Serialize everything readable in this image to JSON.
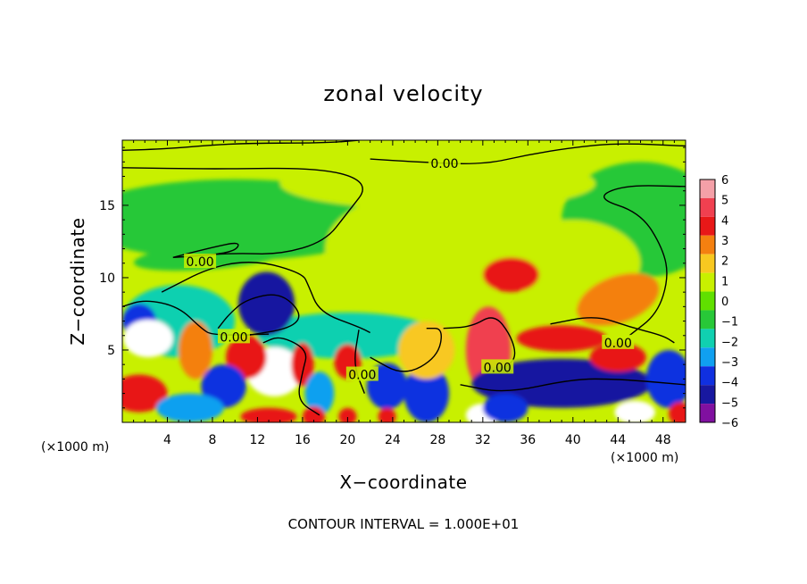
{
  "chart_data": {
    "type": "heatmap",
    "title": "zonal velocity",
    "xlabel": "X−coordinate",
    "ylabel": "Z−coordinate",
    "x_unit_left": "(×1000 m)",
    "x_unit_right": "(×1000 m)",
    "footer": "CONTOUR INTERVAL = 1.000E+01",
    "xlim": [
      0,
      50
    ],
    "ylim": [
      0,
      19.5
    ],
    "x_ticks": [
      4,
      8,
      12,
      16,
      20,
      24,
      28,
      32,
      36,
      40,
      44,
      48
    ],
    "y_ticks": [
      5,
      10,
      15
    ],
    "x_tick_labels": [
      "4",
      "8",
      "12",
      "16",
      "20",
      "24",
      "28",
      "32",
      "36",
      "40",
      "44",
      "48"
    ],
    "y_tick_labels": [
      "5",
      "10",
      "15"
    ],
    "colorbar": {
      "levels": [
        6,
        5,
        4,
        3,
        2,
        1,
        0,
        -1,
        -2,
        -3,
        -4,
        -5,
        -6
      ],
      "labels": [
        "6",
        "5",
        "4",
        "3",
        "2",
        "1",
        "0",
        "−1",
        "−2",
        "−3",
        "−4",
        "−5",
        "−6"
      ],
      "colors": [
        "#f4a0a8",
        "#f04050",
        "#e81818",
        "#f48010",
        "#f8c820",
        "#c8f000",
        "#60e000",
        "#28c838",
        "#10d0b0",
        "#10a0f0",
        "#1030e0",
        "#1818a0",
        "#8010a0"
      ]
    },
    "contour_labels": [
      {
        "text": "0.00",
        "x": 28.6,
        "y": 17.9
      },
      {
        "text": "0.00",
        "x": 6.9,
        "y": 11.1
      },
      {
        "text": "0.00",
        "x": 9.9,
        "y": 5.9
      },
      {
        "text": "0.00",
        "x": 21.3,
        "y": 3.3
      },
      {
        "text": "0.00",
        "x": 33.3,
        "y": 3.8
      },
      {
        "text": "0.00",
        "x": 44.0,
        "y": 5.5
      }
    ],
    "features": [
      {
        "type": "background",
        "value": 0.6
      },
      {
        "value": -0.8,
        "cx": 10,
        "cy": 14,
        "rx": 14,
        "ry": 2.8,
        "rot": 0
      },
      {
        "value": -0.7,
        "cx": 46,
        "cy": 14,
        "rx": 7,
        "ry": 4,
        "rot": 0
      },
      {
        "value": 0.7,
        "cx": 28,
        "cy": 16.5,
        "rx": 14,
        "ry": 1.8,
        "rot": 0
      },
      {
        "value": -0.9,
        "cx": 8,
        "cy": 11.5,
        "rx": 7,
        "ry": 0.9,
        "rot": -5
      },
      {
        "value": 1.3,
        "cx": 27,
        "cy": 12,
        "rx": 9,
        "ry": 4,
        "rot": 0
      },
      {
        "value": 0.9,
        "cx": 40,
        "cy": 11,
        "rx": 6,
        "ry": 3,
        "rot": 0
      },
      {
        "value": -1.6,
        "cx": 5,
        "cy": 7,
        "rx": 5,
        "ry": 2.5,
        "rot": 0
      },
      {
        "value": -2.2,
        "cx": 20,
        "cy": 6,
        "rx": 8,
        "ry": 1.6,
        "rot": 0
      },
      {
        "value": -5.5,
        "cx": 12.8,
        "cy": 8.2,
        "rx": 2.5,
        "ry": 2.2,
        "rot": 0
      },
      {
        "value": 3.5,
        "cx": 34.5,
        "cy": 10.2,
        "rx": 2.5,
        "ry": 1.2,
        "rot": 0
      },
      {
        "value": 3.4,
        "cx": 44,
        "cy": 8.5,
        "rx": 3.8,
        "ry": 1.6,
        "rot": -20
      },
      {
        "value": -4.0,
        "cx": 1.5,
        "cy": 7,
        "rx": 1.5,
        "ry": 1.2,
        "rot": 0
      },
      {
        "value": 8.0,
        "cx": 2.3,
        "cy": 5.8,
        "rx": 2.2,
        "ry": 1.3,
        "rot": 0
      },
      {
        "value": 3.0,
        "cx": 6.5,
        "cy": 5,
        "rx": 1.5,
        "ry": 2,
        "rot": 0
      },
      {
        "value": 8.0,
        "cx": 13.5,
        "cy": 3.5,
        "rx": 2.5,
        "ry": 1.7,
        "rot": 0
      },
      {
        "value": 3.5,
        "cx": 11,
        "cy": 4.5,
        "rx": 1.8,
        "ry": 1.5,
        "rot": 0
      },
      {
        "value": 3.5,
        "cx": 16,
        "cy": 4,
        "rx": 1,
        "ry": 1.5,
        "rot": 0
      },
      {
        "value": -4.5,
        "cx": 9,
        "cy": 2.5,
        "rx": 2,
        "ry": 1.5,
        "rot": 0
      },
      {
        "value": -3.5,
        "cx": 17.5,
        "cy": 2,
        "rx": 1.3,
        "ry": 1.5,
        "rot": 0
      },
      {
        "value": 4.0,
        "cx": 20,
        "cy": 4.2,
        "rx": 1.2,
        "ry": 1.2,
        "rot": 0
      },
      {
        "value": -4.0,
        "cx": 23.5,
        "cy": 2.5,
        "rx": 1.8,
        "ry": 1.6,
        "rot": 0
      },
      {
        "value": -4.5,
        "cx": 27,
        "cy": 2,
        "rx": 2,
        "ry": 2,
        "rot": 0
      },
      {
        "value": 5.0,
        "cx": 32.5,
        "cy": 5,
        "rx": 2,
        "ry": 3,
        "rot": 0
      },
      {
        "value": 1.5,
        "cx": 27,
        "cy": 5,
        "rx": 2.5,
        "ry": 2,
        "rot": 0
      },
      {
        "value": -5.0,
        "cx": 39,
        "cy": 2.7,
        "rx": 8,
        "ry": 1.7,
        "rot": 0
      },
      {
        "value": 4.0,
        "cx": 39,
        "cy": 5.8,
        "rx": 4,
        "ry": 0.9,
        "rot": 0
      },
      {
        "value": 3.5,
        "cx": 44,
        "cy": 4.5,
        "rx": 2.5,
        "ry": 1,
        "rot": 0
      },
      {
        "value": -4.5,
        "cx": 48.5,
        "cy": 3,
        "rx": 2,
        "ry": 2,
        "rot": 0
      },
      {
        "value": 3.5,
        "cx": 1.5,
        "cy": 2,
        "rx": 2.5,
        "ry": 1.3,
        "rot": 0
      },
      {
        "value": -3.5,
        "cx": 6,
        "cy": 1,
        "rx": 3,
        "ry": 1,
        "rot": 0
      },
      {
        "value": 3.5,
        "cx": 13,
        "cy": 0.4,
        "rx": 2.5,
        "ry": 0.6,
        "rot": 0
      },
      {
        "value": 3.5,
        "cx": 17,
        "cy": 0.4,
        "rx": 1,
        "ry": 0.7,
        "rot": 0
      },
      {
        "value": 3.5,
        "cx": 20,
        "cy": 0.4,
        "rx": 0.8,
        "ry": 0.6,
        "rot": 0
      },
      {
        "value": 3.5,
        "cx": 23.5,
        "cy": 0.4,
        "rx": 0.8,
        "ry": 0.6,
        "rot": 0
      },
      {
        "value": 8.0,
        "cx": 32,
        "cy": 0.5,
        "rx": 1.5,
        "ry": 0.8,
        "rot": 0
      },
      {
        "value": -4.5,
        "cx": 34,
        "cy": 1,
        "rx": 2,
        "ry": 1,
        "rot": 0
      },
      {
        "value": 8.0,
        "cx": 45.5,
        "cy": 0.7,
        "rx": 1.8,
        "ry": 0.8,
        "rot": 0
      },
      {
        "value": 3.5,
        "cx": 49.5,
        "cy": 0.6,
        "rx": 1,
        "ry": 0.8,
        "rot": 0
      }
    ],
    "contours": [
      [
        [
          0,
          18.8
        ],
        [
          4,
          18.9
        ],
        [
          10,
          19.3
        ],
        [
          18,
          19.3
        ],
        [
          21,
          19.5
        ]
      ],
      [
        [
          0,
          17.6
        ],
        [
          8,
          17.5
        ],
        [
          18,
          17.6
        ],
        [
          22,
          16.5
        ],
        [
          20,
          14.5
        ],
        [
          18,
          12.5
        ],
        [
          14,
          11.6
        ],
        [
          10,
          11.7
        ],
        [
          6,
          11.5
        ]
      ],
      [
        [
          22,
          18.2
        ],
        [
          26,
          18.0
        ],
        [
          32,
          17.8
        ],
        [
          36,
          18.5
        ],
        [
          40,
          19.0
        ],
        [
          44,
          19.3
        ],
        [
          50,
          19.1
        ]
      ],
      [
        [
          4.5,
          11.4
        ],
        [
          8,
          12.1
        ],
        [
          10.5,
          12.5
        ],
        [
          10,
          11.8
        ],
        [
          7,
          11.5
        ],
        [
          4.5,
          11.4
        ]
      ],
      [
        [
          50,
          16.3
        ],
        [
          44.5,
          16.4
        ],
        [
          42,
          15.5
        ],
        [
          46,
          14.5
        ],
        [
          48,
          12.0
        ],
        [
          48.5,
          10.0
        ],
        [
          47.5,
          7.5
        ],
        [
          45,
          6.0
        ]
      ],
      [
        [
          3.5,
          9.0
        ],
        [
          8,
          10.8
        ],
        [
          12,
          11.2
        ],
        [
          16,
          10.3
        ],
        [
          16.5,
          9.5
        ],
        [
          17.5,
          7.6
        ],
        [
          21,
          6.6
        ],
        [
          22,
          6.2
        ]
      ],
      [
        [
          0,
          8.0
        ],
        [
          2,
          8.5
        ],
        [
          5,
          8.0
        ],
        [
          7,
          6.5
        ],
        [
          8,
          6.0
        ],
        [
          13,
          6.1
        ]
      ],
      [
        [
          8.5,
          6.5
        ],
        [
          9.5,
          7.5
        ],
        [
          11,
          8.5
        ],
        [
          14,
          9.0
        ],
        [
          16,
          7.5
        ],
        [
          15,
          6.5
        ],
        [
          11,
          6.0
        ]
      ],
      [
        [
          12.5,
          5.5
        ],
        [
          14,
          6.0
        ],
        [
          16.5,
          5.0
        ],
        [
          16,
          3.5
        ],
        [
          15.5,
          1.5
        ],
        [
          17.5,
          0.5
        ]
      ],
      [
        [
          21,
          6.4
        ],
        [
          20.5,
          4.0
        ],
        [
          21.5,
          2.0
        ]
      ],
      [
        [
          22,
          4.5
        ],
        [
          25,
          3.2
        ],
        [
          28,
          4.5
        ],
        [
          28.5,
          6.5
        ],
        [
          27,
          6.5
        ]
      ],
      [
        [
          28.5,
          6.5
        ],
        [
          31,
          6.6
        ],
        [
          33,
          7.5
        ],
        [
          34.5,
          6.0
        ],
        [
          35,
          4.5
        ],
        [
          34,
          3.8
        ]
      ],
      [
        [
          30,
          2.6
        ],
        [
          34,
          2.0
        ],
        [
          40,
          3.0
        ],
        [
          44,
          3.0
        ],
        [
          50,
          2.6
        ]
      ],
      [
        [
          38,
          6.8
        ],
        [
          42,
          7.4
        ],
        [
          45,
          6.6
        ],
        [
          48,
          6.0
        ],
        [
          49,
          5.5
        ]
      ]
    ]
  }
}
